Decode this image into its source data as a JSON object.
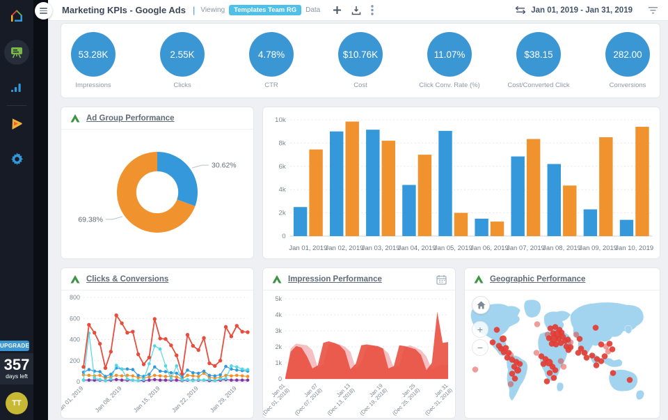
{
  "header": {
    "title": "Marketing KPIs - Google Ads",
    "viewing_label": "Viewing",
    "viewing_chip": "Templates Team RG",
    "data_label": "Data",
    "date_range": "Jan 01, 2019 - Jan 31, 2019"
  },
  "sidebar": {
    "upgrade_label": "UPGRADE",
    "days_number": "357",
    "days_label": "days left",
    "avatar_initials": "TT",
    "icons": [
      "logo-home",
      "presentation-board",
      "bar-chart",
      "play",
      "gear"
    ]
  },
  "icons": {
    "zoom_in": "+",
    "zoom_out": "−"
  },
  "kpis": [
    {
      "value": "53.28K",
      "label": "Impressions"
    },
    {
      "value": "2.55K",
      "label": "Clicks"
    },
    {
      "value": "4.78%",
      "label": "CTR"
    },
    {
      "value": "$10.76K",
      "label": "Cost"
    },
    {
      "value": "11.07%",
      "label": "Click Conv. Rate (%)"
    },
    {
      "value": "$38.15",
      "label": "Cost/Converted Click"
    },
    {
      "value": "282.00",
      "label": "Conversions"
    }
  ],
  "cards": {
    "ad_group": {
      "title": "Ad Group Performance"
    },
    "clicks_conversions": {
      "title": "Clicks & Conversions"
    },
    "impression": {
      "title": "Impression Performance"
    },
    "geographic": {
      "title": "Geographic Performance"
    }
  },
  "colors": {
    "kpi_blue": "#3b97d3",
    "blue": "#3598db",
    "orange": "#f0932f",
    "red": "#e84c3d",
    "pink": "#f3b5b8",
    "cyan": "#4fd8e8",
    "purple": "#8333a8",
    "map_land": "#a3d4ef",
    "map_dot": "#e23c33",
    "green_logo": "#3e9345",
    "axis_text": "#7b8794",
    "grid": "#e4e8ec"
  },
  "chart_data": [
    {
      "id": "donut",
      "type": "pie",
      "title": "Ad Group Performance",
      "values": [
        30.62,
        69.38
      ],
      "labels": [
        "30.62%",
        "69.38%"
      ],
      "slice_colors": [
        "#3598db",
        "#f0932f"
      ],
      "inner_radius_ratio": 0.52,
      "start_angle_deg": -90
    },
    {
      "id": "bars",
      "type": "bar",
      "title": "",
      "categories": [
        "Jan 01, 2019",
        "Jan 02, 2019",
        "Jan 03, 2019",
        "Jan 04, 2019",
        "Jan 05, 2019",
        "Jan 06, 2019",
        "Jan 07, 2019",
        "Jan 08, 2019",
        "Jan 09, 2019",
        "Jan 10, 2019"
      ],
      "series": [
        {
          "name": "blue",
          "color": "#3598db",
          "values": [
            2500,
            9000,
            9150,
            4400,
            9050,
            1500,
            6850,
            6200,
            2300,
            1400
          ]
        },
        {
          "name": "orange",
          "color": "#f0932f",
          "values": [
            7450,
            9850,
            8200,
            7000,
            2000,
            1250,
            8350,
            4350,
            8500,
            9400
          ]
        }
      ],
      "ylim": [
        0,
        10000
      ],
      "yticks": [
        0,
        2000,
        4000,
        6000,
        8000,
        10000
      ],
      "ytick_format": "k",
      "grid": "dashed"
    },
    {
      "id": "lines",
      "type": "line",
      "title": "Clicks & Conversions",
      "x_labels": [
        "Jan 01, 2019",
        "Jan 08, 2019",
        "Jan 15, 2019",
        "Jan 22, 2019",
        "Jan 29, 2019"
      ],
      "x_label_positions": [
        0,
        7,
        14,
        21,
        28
      ],
      "n_points": 31,
      "ylim": [
        0,
        800
      ],
      "yticks": [
        0,
        200,
        400,
        600,
        800
      ],
      "series": [
        {
          "name": "red",
          "color": "#e84c3d",
          "values": [
            140,
            540,
            465,
            360,
            130,
            285,
            630,
            555,
            465,
            475,
            260,
            165,
            230,
            595,
            410,
            405,
            345,
            250,
            75,
            445,
            340,
            300,
            415,
            175,
            150,
            200,
            520,
            430,
            530,
            475,
            470
          ]
        },
        {
          "name": "cyan",
          "color": "#4fd8e8",
          "values": [
            15,
            460,
            35,
            20,
            10,
            25,
            155,
            120,
            25,
            15,
            10,
            20,
            170,
            340,
            310,
            150,
            25,
            150,
            15,
            20,
            10,
            20,
            15,
            20,
            10,
            25,
            30,
            150,
            140,
            120,
            115
          ]
        },
        {
          "name": "blue",
          "color": "#3598db",
          "values": [
            90,
            115,
            100,
            95,
            50,
            70,
            130,
            120,
            120,
            115,
            60,
            50,
            70,
            140,
            100,
            95,
            85,
            80,
            45,
            110,
            85,
            80,
            100,
            60,
            55,
            65,
            145,
            120,
            110,
            105,
            100
          ]
        },
        {
          "name": "orange",
          "color": "#ef9227",
          "values": [
            65,
            60,
            55,
            60,
            35,
            45,
            60,
            55,
            60,
            55,
            40,
            35,
            45,
            60,
            55,
            50,
            50,
            45,
            25,
            60,
            55,
            50,
            80,
            40,
            35,
            40,
            60,
            55,
            60,
            55,
            50
          ]
        },
        {
          "name": "purple",
          "color": "#8333a8",
          "values": [
            15,
            15,
            15,
            15,
            10,
            15,
            20,
            15,
            15,
            15,
            10,
            10,
            15,
            20,
            15,
            15,
            15,
            15,
            10,
            15,
            15,
            15,
            15,
            10,
            10,
            15,
            20,
            15,
            15,
            15,
            15
          ]
        }
      ]
    },
    {
      "id": "areas",
      "type": "area",
      "title": "Impression Performance",
      "x_labels": [
        {
          "label": "Jan 01",
          "sub": "(Dec 01, 2018)"
        },
        {
          "label": "Jan 07",
          "sub": "(Dec 07, 2018)"
        },
        {
          "label": "Jan 13",
          "sub": "(Dec 13, 2018)"
        },
        {
          "label": "Jan 19",
          "sub": "(Dec 19, 2018)"
        },
        {
          "label": "Jan 25",
          "sub": "(Dec 25, 2018)"
        },
        {
          "label": "Jan 31",
          "sub": "(Dec 31, 2018)"
        }
      ],
      "x_label_positions": [
        0,
        6,
        12,
        18,
        24,
        30
      ],
      "ylim": [
        0,
        5000
      ],
      "yticks": [
        0,
        1000,
        2000,
        3000,
        4000,
        5000
      ],
      "ytick_format": "k",
      "series": [
        {
          "name": "previous",
          "color": "#f3b5b8",
          "opacity": 0.85,
          "values": [
            60,
            1900,
            2200,
            2150,
            2100,
            1800,
            700,
            900,
            2150,
            2250,
            2150,
            2000,
            1700,
            650,
            1000,
            2000,
            2100,
            2000,
            1900,
            1600,
            700,
            850,
            2000,
            2100,
            1950,
            1800,
            1400,
            600,
            800,
            900,
            850
          ]
        },
        {
          "name": "current",
          "color": "#e84c3d",
          "opacity": 0.88,
          "values": [
            80,
            1700,
            2050,
            1950,
            1400,
            650,
            850,
            2250,
            2350,
            2250,
            2100,
            1750,
            600,
            950,
            2100,
            2150,
            2100,
            2050,
            1900,
            650,
            800,
            2100,
            2050,
            1950,
            1850,
            1500,
            550,
            1000,
            4200,
            2250,
            2300
          ]
        }
      ]
    },
    {
      "id": "map",
      "type": "scatter",
      "title": "Geographic Performance",
      "dot_color": "#e23c33",
      "dots": [
        [
          123,
          48
        ],
        [
          130,
          46
        ],
        [
          136,
          50
        ],
        [
          127,
          55
        ],
        [
          133,
          56,
          5.5
        ],
        [
          139,
          54
        ],
        [
          121,
          62
        ],
        [
          128,
          63,
          6
        ],
        [
          135,
          63
        ],
        [
          141,
          60
        ],
        [
          125,
          70
        ],
        [
          131,
          71
        ],
        [
          138,
          69
        ],
        [
          144,
          66
        ],
        [
          146,
          74
        ],
        [
          119,
          57,
          4.3,
          0.5
        ],
        [
          149,
          79
        ],
        [
          188,
          47
        ],
        [
          160,
          57,
          4.3,
          0.5
        ],
        [
          165,
          63
        ],
        [
          152,
          68,
          4.3,
          0.5
        ],
        [
          148,
          64
        ],
        [
          152,
          75
        ],
        [
          46,
          50
        ],
        [
          55,
          63,
          5
        ],
        [
          40,
          68
        ],
        [
          104,
          42,
          4.3,
          0.5
        ],
        [
          52,
          77
        ],
        [
          59,
          76
        ],
        [
          56,
          82
        ],
        [
          63,
          83
        ],
        [
          66,
          86,
          4.3,
          0.5
        ],
        [
          49,
          73
        ],
        [
          61,
          90
        ],
        [
          68,
          93
        ],
        [
          74,
          96
        ],
        [
          79,
          99
        ],
        [
          71,
          103
        ],
        [
          76,
          108,
          5
        ],
        [
          68,
          113
        ],
        [
          72,
          120
        ],
        [
          66,
          128,
          4.3,
          0.5
        ],
        [
          103,
          83,
          4.3,
          0.5
        ],
        [
          110,
          88
        ],
        [
          116,
          92
        ],
        [
          121,
          97,
          5.5
        ],
        [
          113,
          99
        ],
        [
          126,
          103
        ],
        [
          130,
          108
        ],
        [
          122,
          112
        ],
        [
          128,
          119
        ],
        [
          118,
          124
        ],
        [
          138,
          95,
          4.3,
          0.5
        ],
        [
          142,
          103,
          4.3,
          0.5
        ],
        [
          167,
          77
        ],
        [
          172,
          83
        ],
        [
          175,
          90
        ],
        [
          163,
          83
        ],
        [
          183,
          87
        ],
        [
          190,
          92
        ],
        [
          196,
          95
        ],
        [
          201,
          88
        ],
        [
          206,
          81,
          4.3,
          0.5
        ],
        [
          189,
          101
        ],
        [
          196,
          71
        ],
        [
          203,
          74,
          4.3,
          0.5
        ],
        [
          208,
          70
        ],
        [
          212,
          78
        ],
        [
          213,
          112
        ],
        [
          237,
          122
        ],
        [
          15,
          107,
          4.3,
          0.5
        ]
      ]
    }
  ]
}
